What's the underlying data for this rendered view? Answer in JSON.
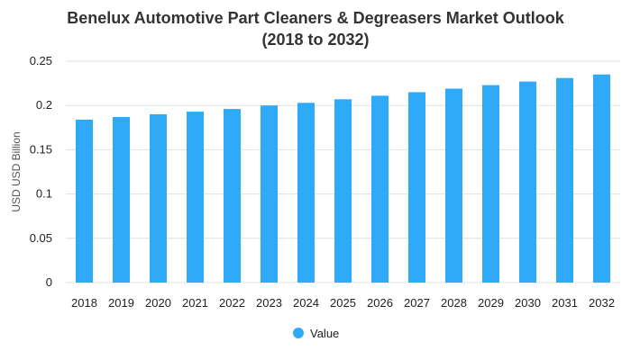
{
  "chart_data": {
    "type": "bar",
    "title": "Benelux Automotive Part Cleaners & Degreasers Market Outlook",
    "subtitle": "(2018 to 2032)",
    "xlabel": "",
    "ylabel": "USD USD Billion",
    "categories": [
      "2018",
      "2019",
      "2020",
      "2021",
      "2022",
      "2023",
      "2024",
      "2025",
      "2026",
      "2027",
      "2028",
      "2029",
      "2030",
      "2031",
      "2032"
    ],
    "series": [
      {
        "name": "Value",
        "values": [
          0.184,
          0.187,
          0.19,
          0.193,
          0.196,
          0.2,
          0.203,
          0.207,
          0.211,
          0.215,
          0.219,
          0.223,
          0.227,
          0.231,
          0.235
        ]
      }
    ],
    "ylim": [
      0,
      0.25
    ],
    "yticks": [
      "0",
      "0.05",
      "0.1",
      "0.15",
      "0.2",
      "0.25"
    ],
    "grid": true,
    "legend_position": "bottom-center",
    "bar_color": "#2eaaf9",
    "grid_color": "#e0e0e0",
    "title_color": "#333333"
  }
}
